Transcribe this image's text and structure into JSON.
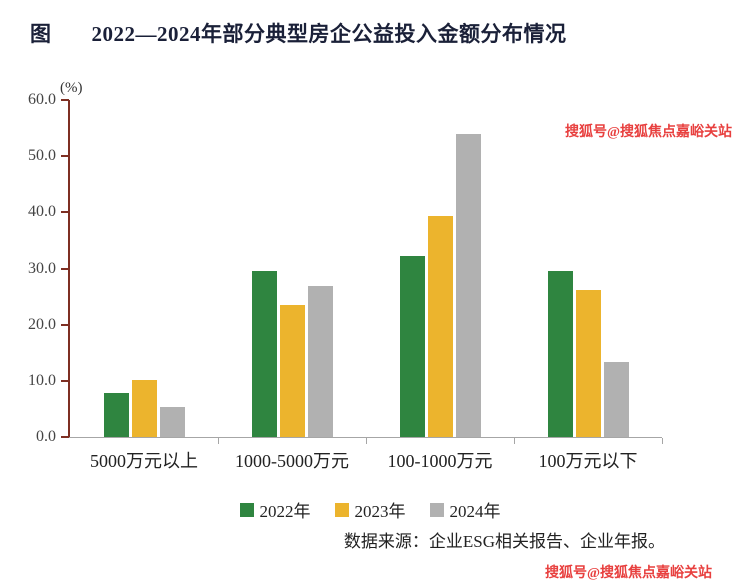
{
  "title": {
    "prefix": "图",
    "text": "2022—2024年部分典型房企公益投入金额分布情况"
  },
  "chart_data": {
    "type": "bar",
    "unit_label": "(%)",
    "categories": [
      "5000万元以上",
      "1000-5000万元",
      "100-1000万元",
      "100万元以下"
    ],
    "series": [
      {
        "name": "2022年",
        "color": "#2f8540",
        "values": [
          7.8,
          29.5,
          32.3,
          29.5
        ]
      },
      {
        "name": "2023年",
        "color": "#ecb42d",
        "values": [
          10.2,
          23.5,
          39.4,
          26.2
        ]
      },
      {
        "name": "2024年",
        "color": "#b1b1b1",
        "values": [
          5.3,
          26.8,
          53.9,
          13.3
        ]
      }
    ],
    "ylim": [
      0,
      60
    ],
    "ytick_step": 10,
    "ytick_labels": [
      "0.0",
      "10.0",
      "20.0",
      "30.0",
      "40.0",
      "50.0",
      "60.0"
    ],
    "grid": false,
    "legend_position": "bottom",
    "axis_color": "#7e2f23"
  },
  "source_note": "数据来源：企业ESG相关报告、企业年报。",
  "watermark": {
    "text": "搜狐号@搜狐焦点嘉峪关站",
    "color": "#e8403f"
  }
}
